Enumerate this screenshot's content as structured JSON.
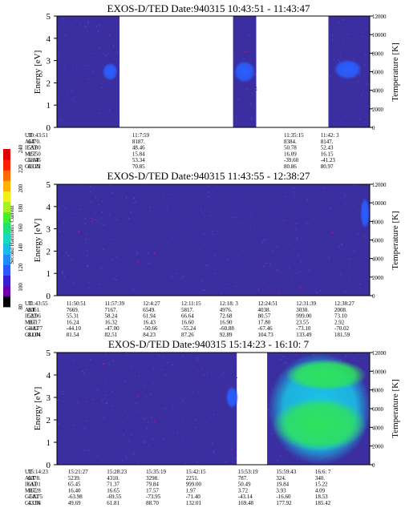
{
  "colors": {
    "background": "#3a2ea0",
    "gap": "#ffffff",
    "signal_low": "#2a5fff",
    "signal_mid": "#19c6e8",
    "signal_high": "#2fe25c",
    "colorbar": [
      "#000000",
      "#6b00aa",
      "#3a1fd0",
      "#2a5aff",
      "#1e8cff",
      "#18bce8",
      "#18d8c0",
      "#20e07a",
      "#46ee2c",
      "#a8f020",
      "#f0f01a",
      "#ffb000",
      "#ff6a00",
      "#ff2200",
      "#dd0000"
    ]
  },
  "colorbar": {
    "label": "Second Harmonic Current",
    "ticks": [
      "80",
      "100",
      "120",
      "140",
      "160",
      "180",
      "200",
      "220",
      "240"
    ]
  },
  "table_row_labels": [
    "UT",
    "ALT",
    "ILAT",
    "MLT",
    "GLAT",
    "GLON"
  ],
  "chart_data": [
    {
      "type": "heatmap",
      "title": "EXOS-D/TED   Date:940315   10:43:51 - 11:43:47",
      "ylabel": "Energy [eV]",
      "y2label": "Temperature [K]",
      "ylim": [
        0,
        5
      ],
      "y2lim": [
        0,
        12000
      ],
      "yticks": [
        "0",
        "1",
        "2",
        "3",
        "4",
        "5"
      ],
      "y2ticks": [
        "0",
        "2000",
        "4000",
        "6000",
        "8000",
        "10000",
        "12000"
      ],
      "data_segments": [
        [
          0.0,
          0.2
        ],
        [
          0.563,
          0.637
        ],
        [
          0.868,
          1.0
        ]
      ],
      "blobs": [
        {
          "x": 0.17,
          "y": 2.5,
          "w": 0.05,
          "h": 0.8,
          "level": "low"
        },
        {
          "x": 0.6,
          "y": 2.5,
          "w": 0.07,
          "h": 1.0,
          "level": "low"
        },
        {
          "x": 0.93,
          "y": 2.6,
          "w": 0.09,
          "h": 0.9,
          "level": "low"
        }
      ],
      "ephemeris": [
        {
          "UT": "10:43:51",
          "ALT": "6470.",
          "ILAT": "53.80",
          "MLT": "15.50",
          "GLAT": "58.46",
          "GLON": "69.22"
        },
        {
          "UT": "11:7:59",
          "ALT": "8187.",
          "ILAT": "48.46",
          "MLT": "15.84",
          "GLAT": "53.34",
          "GLON": "70.85"
        },
        {
          "UT": "11:35:15",
          "ALT": "8384.",
          "ILAT": "50.78",
          "MLT": "16.09",
          "GLAT": "-39.60",
          "GLON": "80.86"
        },
        {
          "UT": "11:42: 3",
          "ALT": "8147.",
          "ILAT": "52.43",
          "MLT": "16.15",
          "GLAT": "-41.23",
          "GLON": "80.97"
        }
      ]
    },
    {
      "type": "heatmap",
      "title": "EXOS-D/TED   Date:940315   11:43:55 - 12:38:27",
      "ylabel": "Energy [eV]",
      "y2label": "Temperature [K]",
      "ylim": [
        0,
        5
      ],
      "y2lim": [
        0,
        12000
      ],
      "yticks": [
        "0",
        "1",
        "2",
        "3",
        "4",
        "5"
      ],
      "y2ticks": [
        "0",
        "2000",
        "4000",
        "6000",
        "8000",
        "10000",
        "12000"
      ],
      "data_segments": [
        [
          0.0,
          1.0
        ]
      ],
      "blobs": [
        {
          "x": 0.985,
          "y": 3.7,
          "w": 0.03,
          "h": 1.4,
          "level": "low"
        }
      ],
      "ephemeris": [
        {
          "UT": "11:43:55",
          "ALT": "8061.",
          "ILAT": "52.96",
          "MLT": "16.17",
          "GLAT": "-41.77",
          "GLON": "81.04"
        },
        {
          "UT": "11:50:51",
          "ALT": "7669.",
          "ILAT": "55.31",
          "MLT": "16.24",
          "GLAT": "-44.10",
          "GLON": "81.54"
        },
        {
          "UT": "11:57:39",
          "ALT": "7167.",
          "ILAT": "58.24",
          "MLT": "16.32",
          "GLAT": "-47.00",
          "GLON": "82.51"
        },
        {
          "UT": "12:4:27",
          "ALT": "6549.",
          "ILAT": "61.94",
          "MLT": "16.43",
          "GLAT": "-50.66",
          "GLON": "84.23"
        },
        {
          "UT": "12:11:15",
          "ALT": "5817.",
          "ILAT": "66.64",
          "MLT": "16.60",
          "GLAT": "-55.24",
          "GLON": "87.26"
        },
        {
          "UT": "12:18: 3",
          "ALT": "4976.",
          "ILAT": "72.68",
          "MLT": "16.90",
          "GLAT": "-60.88",
          "GLON": "92.89"
        },
        {
          "UT": "12:24:51",
          "ALT": "4038.",
          "ILAT": "80.57",
          "MLT": "17.80",
          "GLAT": "-67.46",
          "GLON": "104.73"
        },
        {
          "UT": "12:31:39",
          "ALT": "3030.",
          "ILAT": "999.00",
          "MLT": "23.55",
          "GLAT": "-73.10",
          "GLON": "133.49"
        },
        {
          "UT": "12:38:27",
          "ALT": "2008.",
          "ILAT": "73.10",
          "MLT": "2.92",
          "GLAT": "-70.02",
          "GLON": "181.59"
        }
      ]
    },
    {
      "type": "heatmap",
      "title": "EXOS-D/TED   Date:940315   15:14:23 - 16:10: 7",
      "ylabel": "Energy [eV]",
      "y2label": "Temperature [K]",
      "ylim": [
        0,
        5
      ],
      "y2lim": [
        0,
        12000
      ],
      "yticks": [
        "0",
        "1",
        "2",
        "3",
        "4",
        "5"
      ],
      "y2ticks": [
        "0",
        "2000",
        "4000",
        "6000",
        "8000",
        "10000",
        "12000"
      ],
      "data_segments": [
        [
          0.0,
          0.575
        ],
        [
          0.672,
          1.0
        ]
      ],
      "blobs": [
        {
          "x": 0.56,
          "y": 3.0,
          "w": 0.04,
          "h": 1.0,
          "level": "low"
        },
        {
          "x": 0.84,
          "y": 2.5,
          "w": 0.33,
          "h": 5.0,
          "level": "mid"
        },
        {
          "x": 0.84,
          "y": 1.8,
          "w": 0.3,
          "h": 2.4,
          "level": "high"
        },
        {
          "x": 0.86,
          "y": 4.0,
          "w": 0.26,
          "h": 1.4,
          "level": "high"
        }
      ],
      "ephemeris": [
        {
          "UT": "15:14:23",
          "ALT": "6078.",
          "ILAT": "61.01",
          "MLT": "16.28",
          "GLAT": "-58.75",
          "GLON": "43.56"
        },
        {
          "UT": "15:21:27",
          "ALT": "5239.",
          "ILAT": "65.45",
          "MLT": "16.40",
          "GLAT": "-63.98",
          "GLON": "49.69"
        },
        {
          "UT": "15:28:23",
          "ALT": "4310.",
          "ILAT": "71.37",
          "MLT": "16.65",
          "GLAT": "-69.55",
          "GLON": "61.81"
        },
        {
          "UT": "15:35:19",
          "ALT": "3298.",
          "ILAT": "79.84",
          "MLT": "17.57",
          "GLAT": "-73.95",
          "GLON": "88.70"
        },
        {
          "UT": "15:42:15",
          "ALT": "2251.",
          "ILAT": "999.00",
          "MLT": "1.97",
          "GLAT": "-71.40",
          "GLON": "132.01"
        },
        {
          "UT": "15:53:19",
          "ALT": "787.",
          "ILAT": "50.49",
          "MLT": "3.72",
          "GLAT": "-43.14",
          "GLON": "169.48"
        },
        {
          "UT": "15:59:43",
          "ALT": "324.",
          "ILAT": "19.84",
          "MLT": "3.93",
          "GLAT": "-16.60",
          "GLON": "177.92"
        },
        {
          "UT": "16:6: 7",
          "ALT": "340.",
          "ILAT": "15.22",
          "MLT": "4.09",
          "GLAT": "18.53",
          "GLON": "185.42"
        }
      ]
    }
  ]
}
